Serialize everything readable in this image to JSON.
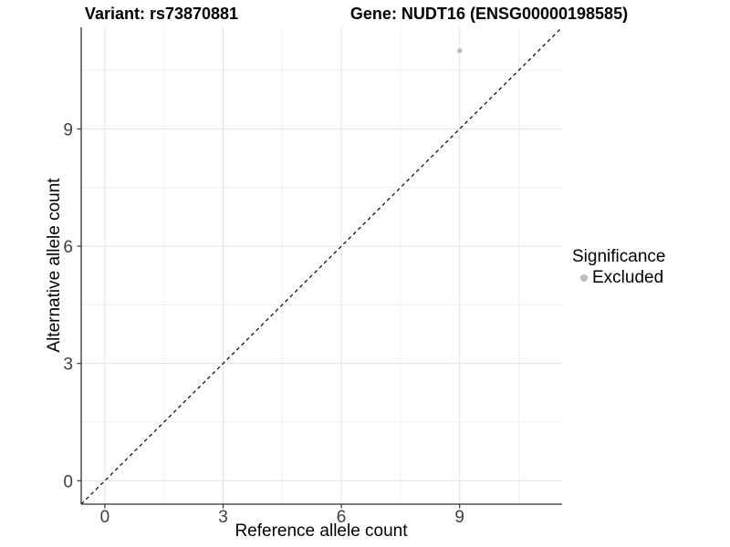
{
  "chart_data": {
    "type": "scatter",
    "title_left": "Variant: rs73870881",
    "title_right": "Gene: NUDT16 (ENSG00000198585)",
    "xlabel": "Reference allele count",
    "ylabel": "Alternative allele count",
    "xlim": [
      -0.6,
      11.6
    ],
    "ylim": [
      -0.6,
      11.6
    ],
    "xticks": [
      0,
      3,
      6,
      9
    ],
    "yticks": [
      0,
      3,
      6,
      9
    ],
    "minor_ticks": [
      1.5,
      4.5,
      7.5,
      10.5
    ],
    "grid": true,
    "points": [
      {
        "x": 9,
        "y": 11,
        "significance": "Excluded",
        "color": "#bdbdbd"
      }
    ],
    "abline": {
      "slope": 1,
      "intercept": 0,
      "style": "dashed",
      "color": "#000000"
    },
    "legend": {
      "position": "right",
      "title": "Significance",
      "entries": [
        {
          "label": "Excluded",
          "color": "#bdbdbd"
        }
      ]
    },
    "colors": {
      "background": "#ffffff",
      "grid_major": "#e3e3e3",
      "grid_minor": "#f1f1f1",
      "axis_line": "#333333",
      "tick_text": "#404040",
      "point": "#bdbdbd"
    }
  }
}
